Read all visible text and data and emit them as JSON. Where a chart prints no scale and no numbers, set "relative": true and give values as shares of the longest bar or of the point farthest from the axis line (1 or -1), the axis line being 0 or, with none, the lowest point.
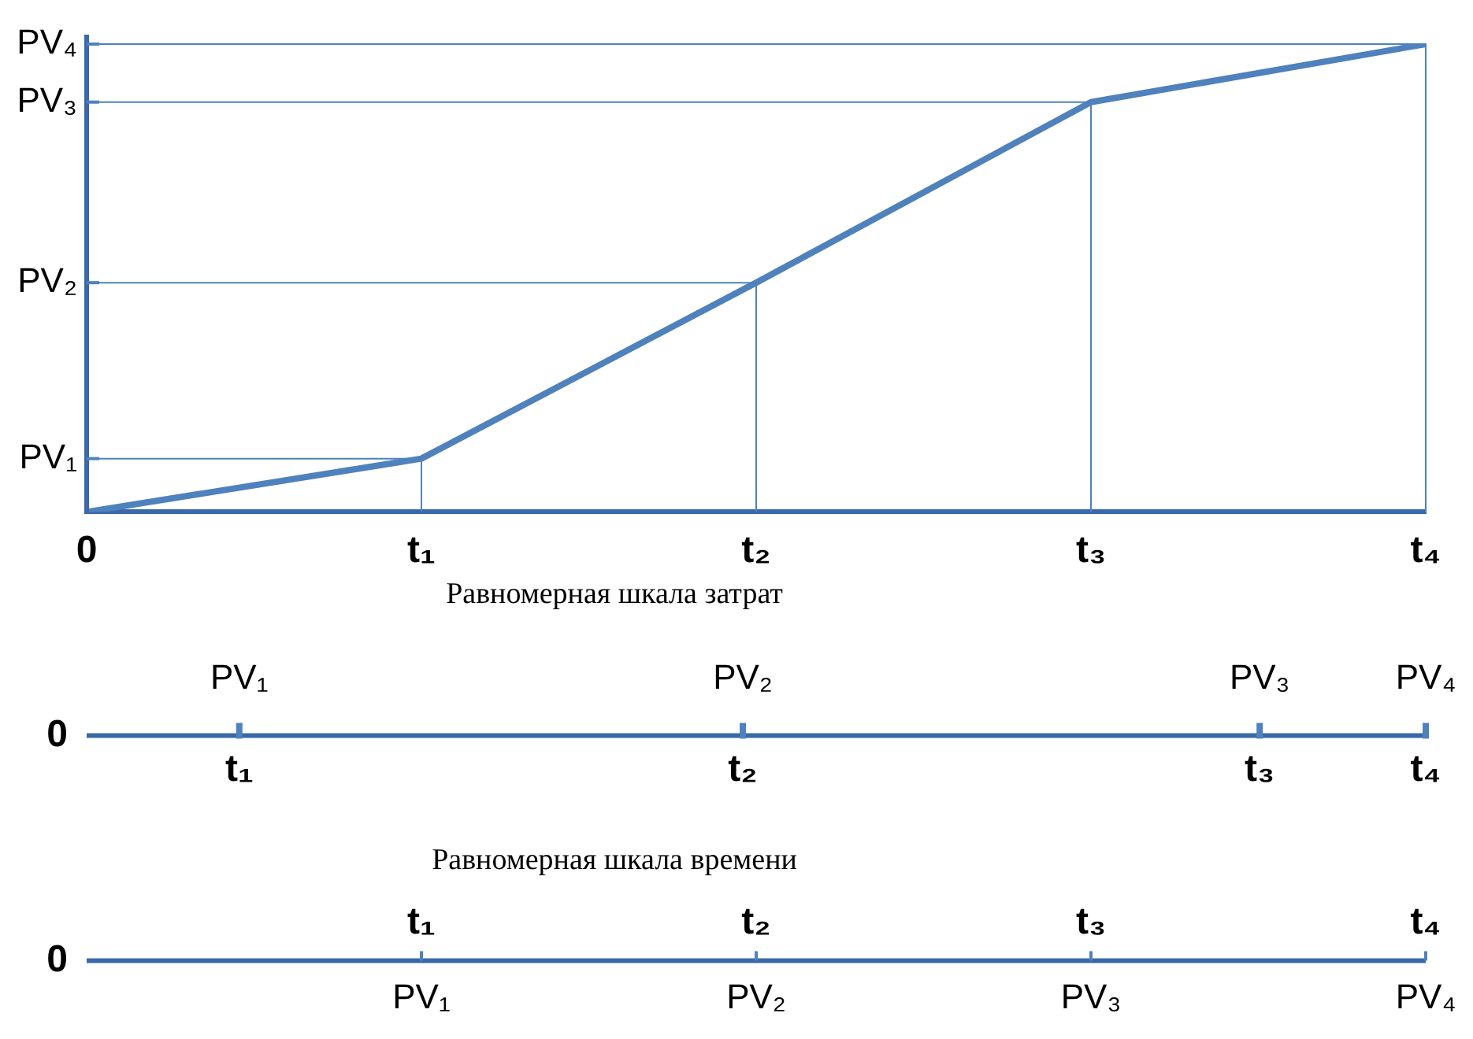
{
  "chart_data": {
    "type": "line",
    "relative": true,
    "grid": false,
    "color": "#4f81bd",
    "categories": [
      "0",
      "t₁",
      "t₂",
      "t₃",
      "t₄"
    ],
    "values": [
      0,
      0.114,
      0.49,
      0.876,
      1
    ],
    "ref_lines": [
      {
        "axis": "y",
        "value": 0.114,
        "label": "PV₁"
      },
      {
        "axis": "y",
        "value": 0.49,
        "label": "PV₂"
      },
      {
        "axis": "y",
        "value": 0.876,
        "label": "PV₃"
      },
      {
        "axis": "y",
        "value": 1,
        "label": "PV₄"
      }
    ],
    "annotations": [
      "Равномерная шкала затрат",
      "Равномерная шкала времени"
    ]
  }
}
